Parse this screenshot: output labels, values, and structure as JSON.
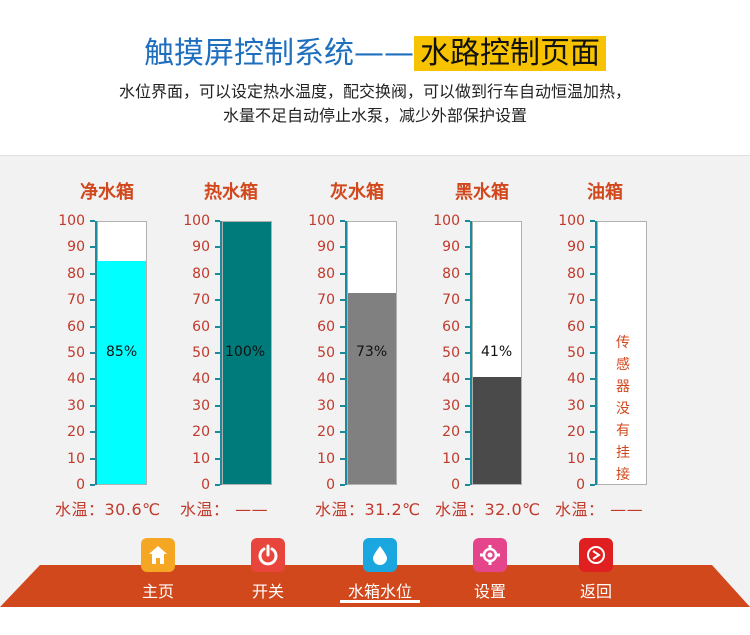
{
  "header": {
    "title_left": "触摸屏控制系统",
    "title_dash": "——",
    "title_right": "水路控制页面",
    "desc_line1": "水位界面，可以设定热水温度，配交换阀，可以做到行车自动恒温加热，",
    "desc_line2": "水量不足自动停止水泵，减少外部保护设置"
  },
  "scale_ticks": [
    "100",
    "90",
    "80",
    "70",
    "60",
    "50",
    "40",
    "30",
    "20",
    "10",
    "0"
  ],
  "tanks": [
    {
      "name": "净水箱",
      "level": 85,
      "level_text": "85%",
      "fill_color": "#00ffff",
      "temp_label": "水温：30.6℃"
    },
    {
      "name": "热水箱",
      "level": 100,
      "level_text": "100%",
      "fill_color": "#007b7b",
      "temp_label": "水温：  ——"
    },
    {
      "name": "灰水箱",
      "level": 73,
      "level_text": "73%",
      "fill_color": "#808080",
      "temp_label": "水温：31.2℃"
    },
    {
      "name": "黑水箱",
      "level": 41,
      "level_text": "41%",
      "fill_color": "#4a4a4a",
      "temp_label": "水温：32.0℃"
    },
    {
      "name": "油箱",
      "level": 0,
      "level_text": "",
      "fill_color": "#ffffff",
      "temp_label": "水温：  ——",
      "sensor_note": "传感器没有挂接"
    }
  ],
  "nav": {
    "bar_color": "#d2481d",
    "items": [
      {
        "label": "主页",
        "icon": "home-icon",
        "color": "#f5a623"
      },
      {
        "label": "开关",
        "icon": "power-icon",
        "color": "#e8453c"
      },
      {
        "label": "水箱水位",
        "icon": "water-drop-icon",
        "color": "#1aa7e0",
        "active": true
      },
      {
        "label": "设置",
        "icon": "gear-icon",
        "color": "#e5458b"
      },
      {
        "label": "返回",
        "icon": "back-icon",
        "color": "#e02020"
      }
    ]
  }
}
